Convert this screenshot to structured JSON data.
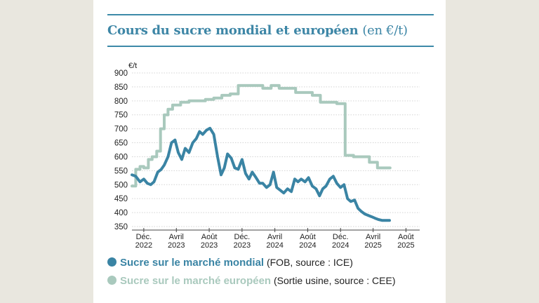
{
  "chart_data": {
    "type": "line",
    "title": "Cours du sucre mondial et européen",
    "title_unit": "(en €/t)",
    "ylabel": "€/t",
    "ylim": [
      350,
      900
    ],
    "yticks": [
      350,
      400,
      450,
      500,
      550,
      600,
      650,
      700,
      750,
      800,
      850,
      900
    ],
    "xticks": [
      {
        "date": "2022-12",
        "label": [
          "Déc.",
          "2022"
        ]
      },
      {
        "date": "2023-04",
        "label": [
          "Avril",
          "2023"
        ]
      },
      {
        "date": "2023-08",
        "label": [
          "Août",
          "2023"
        ]
      },
      {
        "date": "2023-12",
        "label": [
          "Déc.",
          "2023"
        ]
      },
      {
        "date": "2024-04",
        "label": [
          "Avril",
          "2024"
        ]
      },
      {
        "date": "2024-08",
        "label": [
          "Août",
          "2024"
        ]
      },
      {
        "date": "2024-12",
        "label": [
          "Déc.",
          "2024"
        ]
      },
      {
        "date": "2025-04",
        "label": [
          "Avril",
          "2025"
        ]
      },
      {
        "date": "2025-08",
        "label": [
          "Août",
          "2025"
        ]
      }
    ],
    "grid": true,
    "series": [
      {
        "name": "Sucre sur le marché mondial",
        "note": "(FOB, source : ICE)",
        "color": "#3a84a4",
        "x": [
          "2022-11-01",
          "2022-11-15",
          "2022-12-01",
          "2022-12-15",
          "2022-12-28",
          "2023-01-10",
          "2023-01-22",
          "2023-02-05",
          "2023-02-18",
          "2023-03-01",
          "2023-03-15",
          "2023-03-28",
          "2023-04-10",
          "2023-04-22",
          "2023-05-05",
          "2023-05-18",
          "2023-06-01",
          "2023-06-15",
          "2023-06-28",
          "2023-07-10",
          "2023-07-22",
          "2023-08-05",
          "2023-08-18",
          "2023-09-01",
          "2023-09-15",
          "2023-09-28",
          "2023-10-10",
          "2023-10-22",
          "2023-11-05",
          "2023-11-18",
          "2023-12-01",
          "2023-12-15",
          "2023-12-28",
          "2024-01-10",
          "2024-01-22",
          "2024-02-05",
          "2024-02-18",
          "2024-03-01",
          "2024-03-15",
          "2024-03-28",
          "2024-04-10",
          "2024-04-22",
          "2024-05-05",
          "2024-05-18",
          "2024-06-01",
          "2024-06-15",
          "2024-06-28",
          "2024-07-10",
          "2024-07-22",
          "2024-08-05",
          "2024-08-18",
          "2024-09-01",
          "2024-09-15",
          "2024-09-28",
          "2024-10-10",
          "2024-10-22",
          "2024-11-05",
          "2024-11-18",
          "2024-12-01",
          "2024-12-15",
          "2024-12-28",
          "2025-01-10",
          "2025-01-22",
          "2025-02-05",
          "2025-02-18",
          "2025-03-01",
          "2025-03-15",
          "2025-03-28",
          "2025-04-10",
          "2025-04-22",
          "2025-05-05",
          "2025-05-18",
          "2025-06-01",
          "2025-06-15"
        ],
        "values": [
          535,
          530,
          510,
          520,
          505,
          500,
          510,
          545,
          555,
          570,
          600,
          650,
          660,
          615,
          590,
          630,
          615,
          650,
          665,
          690,
          680,
          695,
          702,
          680,
          600,
          535,
          560,
          610,
          595,
          560,
          555,
          590,
          540,
          520,
          545,
          525,
          505,
          505,
          490,
          500,
          545,
          490,
          480,
          470,
          485,
          475,
          520,
          510,
          520,
          510,
          525,
          495,
          485,
          460,
          485,
          495,
          520,
          530,
          505,
          490,
          500,
          450,
          440,
          445,
          415,
          405,
          395,
          390,
          385,
          380,
          375,
          372,
          372,
          372
        ]
      },
      {
        "name": "Sucre sur le marché européen",
        "note": "(Sortie usine, source : CEE)",
        "color": "#a9c9bd",
        "x": [
          "2022-11-01",
          "2022-11-15",
          "2022-12-01",
          "2022-12-15",
          "2023-01-01",
          "2023-01-15",
          "2023-02-01",
          "2023-02-15",
          "2023-03-01",
          "2023-03-15",
          "2023-04-01",
          "2023-05-01",
          "2023-06-01",
          "2023-07-01",
          "2023-08-01",
          "2023-09-01",
          "2023-10-01",
          "2023-11-01",
          "2023-12-01",
          "2024-01-01",
          "2024-02-01",
          "2024-03-01",
          "2024-04-01",
          "2024-05-01",
          "2024-06-01",
          "2024-07-01",
          "2024-08-01",
          "2024-09-01",
          "2024-10-01",
          "2024-11-01",
          "2024-12-01",
          "2025-01-01",
          "2025-02-01",
          "2025-03-01",
          "2025-04-01",
          "2025-05-01"
        ],
        "values": [
          495,
          555,
          565,
          560,
          590,
          600,
          620,
          700,
          750,
          770,
          785,
          795,
          800,
          800,
          805,
          810,
          820,
          825,
          855,
          855,
          855,
          845,
          855,
          845,
          845,
          830,
          830,
          820,
          795,
          795,
          790,
          605,
          600,
          600,
          580,
          560
        ]
      }
    ]
  }
}
